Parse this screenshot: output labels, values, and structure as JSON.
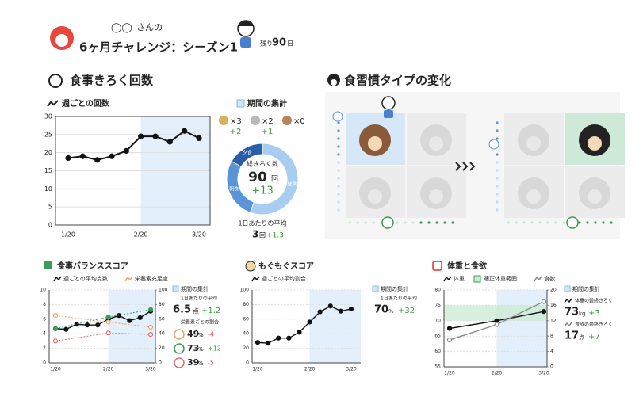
{
  "header": {
    "name": "◯◯",
    "suffix": "さんの",
    "title": "6ヶ月チャレンジ：シーズン1",
    "remaining_prefix": "残り",
    "remaining": "90",
    "remaining_unit": "日"
  },
  "record_section": {
    "title": "食事きろく回数",
    "summary": {
      "title": "期間の集計",
      "medals": [
        {
          "count": "×3",
          "diff": "+2"
        },
        {
          "count": "×2",
          "diff": "+1"
        },
        {
          "count": "×0"
        }
      ],
      "total_label": "総きろく数",
      "total": "90",
      "total_unit": "回",
      "total_diff": "+13",
      "daily_label": "1日あたりの平均",
      "daily": "3",
      "daily_unit": "回",
      "daily_diff": "+1.3"
    }
  },
  "type_section": {
    "title": "食習慣タイプの変化"
  },
  "balance_panel": {
    "summary_title": "期間の集計",
    "daily_label": "1日あたりの平均",
    "score": "6.5",
    "score_unit": "点",
    "score_diff": "+1.2",
    "ratio_label": "栄養素ごとの割合",
    "ratios": [
      {
        "value": "49",
        "unit": "%",
        "diff": "-4"
      },
      {
        "value": "73",
        "unit": "%",
        "diff": "+12"
      },
      {
        "value": "39",
        "unit": "%",
        "diff": "-5"
      }
    ]
  },
  "mogu_panel": {
    "summary_title": "期間の集計",
    "daily_label": "1日あたりの平均",
    "score": "70",
    "score_unit": "%",
    "score_diff": "+32"
  },
  "weight_panel": {
    "summary_title": "期間の集計",
    "weight_label": "体重の最終きろく",
    "weight": "73",
    "weight_unit": "kg",
    "weight_diff": "+3",
    "appetite_label": "食欲の最終きろく",
    "appetite": "17",
    "appetite_unit": "点",
    "appetite_diff": "+7"
  },
  "chart_data": [
    {
      "type": "line",
      "title": "週ごとの回数",
      "categories": [
        "1/20",
        null,
        null,
        null,
        null,
        "2/20",
        null,
        null,
        null,
        "3/20"
      ],
      "series": [
        {
          "color": "#111111",
          "values": [
            18.5,
            19,
            18,
            19,
            20.5,
            24.5,
            24.5,
            23,
            26,
            24
          ]
        }
      ],
      "ylim": [
        0,
        30
      ],
      "yticks": [
        0,
        5,
        10,
        15,
        20,
        25,
        30
      ],
      "grid": true
    },
    {
      "type": "pie",
      "categories": [
        "夕食",
        "朝食",
        "昼食"
      ],
      "values": [
        15,
        25,
        50
      ],
      "colors": [
        "#2a5fa8",
        "#5b94d6",
        "#a8cdf0"
      ]
    },
    {
      "type": "line",
      "title": "食事バランススコア",
      "y2_label": "栄養素充足度",
      "categories": [
        "1/20",
        null,
        null,
        null,
        null,
        "2/20",
        null,
        null,
        null,
        "3/20"
      ],
      "series": [
        {
          "name": "週ごとの平均点数",
          "color": "#111111",
          "values": [
            4.7,
            4.6,
            5.3,
            5.2,
            5.2,
            6.0,
            6.5,
            5.8,
            6.2,
            7.1
          ]
        },
        {
          "color": "#f0a070",
          "axis": "y2",
          "values": [
            65,
            null,
            null,
            null,
            null,
            56,
            null,
            null,
            null,
            49
          ]
        },
        {
          "color": "#3c9a5a",
          "axis": "y2",
          "values": [
            47,
            null,
            null,
            null,
            null,
            63,
            null,
            null,
            null,
            73
          ]
        },
        {
          "color": "#e06a6a",
          "axis": "y2",
          "values": [
            30,
            null,
            null,
            null,
            null,
            41,
            null,
            null,
            null,
            39
          ]
        }
      ],
      "ylim": [
        0,
        10
      ],
      "yticks": [
        0,
        2,
        4,
        6,
        8,
        10
      ],
      "y2lim": [
        0,
        100
      ],
      "y2ticks": [
        0,
        20,
        40,
        60,
        80,
        100
      ],
      "grid": true
    },
    {
      "type": "line",
      "title": "もぐもぐスコア",
      "categories": [
        "1/20",
        null,
        null,
        null,
        null,
        "2/20",
        null,
        null,
        null,
        "3/20"
      ],
      "series": [
        {
          "name": "週ごとの平均割合",
          "color": "#111111",
          "values": [
            28,
            27,
            34,
            34,
            42,
            56,
            70,
            78,
            71,
            74
          ]
        }
      ],
      "ylim": [
        0,
        100
      ],
      "yticks": [
        0,
        20,
        40,
        60,
        80,
        100
      ],
      "grid": true
    },
    {
      "type": "line",
      "title": "体重と食欲",
      "categories": [
        "1/20",
        "2/20",
        "3/20"
      ],
      "series": [
        {
          "name": "体重",
          "color": "#111111",
          "values": [
            67.5,
            70,
            73
          ]
        },
        {
          "name": "食欲",
          "color": "#888888",
          "axis": "y2",
          "values": [
            7,
            11,
            17
          ]
        }
      ],
      "band": {
        "name": "適正体重範囲",
        "range": [
          70,
          75
        ],
        "color": "#cdebd3"
      },
      "ylim": [
        55,
        80
      ],
      "yticks": [
        55,
        60,
        65,
        70,
        75,
        80
      ],
      "y2lim": [
        0,
        20
      ],
      "y2ticks": [
        0,
        4,
        8,
        12,
        16,
        20
      ],
      "grid": true
    }
  ]
}
